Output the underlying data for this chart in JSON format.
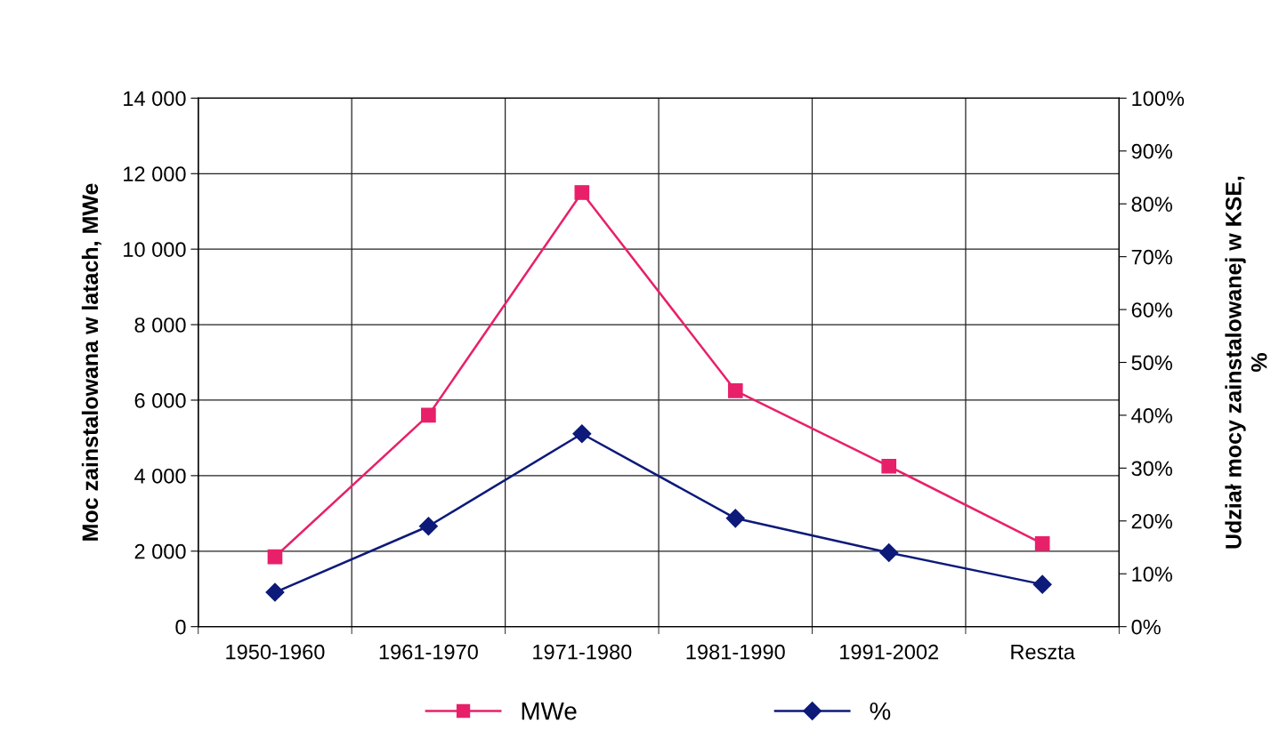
{
  "chart_data": {
    "type": "line",
    "categories": [
      "1950-1960",
      "1961-1970",
      "1971-1980",
      "1981-1990",
      "1991-2002",
      "Reszta"
    ],
    "series": [
      {
        "name": "MWe",
        "color": "#e8206a",
        "values": [
          1850,
          5600,
          11500,
          6250,
          4250,
          2200
        ],
        "marker": "square"
      },
      {
        "name": "%",
        "color": "#0d1a7a",
        "values": [
          6.5,
          19,
          36.5,
          20.5,
          14,
          8
        ],
        "axis": "y2",
        "marker": "diamond"
      }
    ],
    "ylabel": "Moc zainstalowana w latach, MWe",
    "y2label": "Udział mocy zainstalowanej w KSE,\n%",
    "ylim": [
      0,
      14000
    ],
    "yticks": [
      0,
      {
        "value": 2000,
        "label": "2 000"
      },
      {
        "value": 4000,
        "label": "4 000"
      },
      {
        "value": 6000,
        "label": "6 000"
      },
      {
        "value": 8000,
        "label": "8 000"
      },
      {
        "value": 10000,
        "label": "10 000"
      },
      {
        "value": 12000,
        "label": "12 000"
      },
      {
        "value": 14000,
        "label": "14 000"
      }
    ],
    "y2lim": [
      0,
      100
    ],
    "y2ticks": [
      {
        "value": 0,
        "label": "0%"
      },
      {
        "value": 10,
        "label": "10%"
      },
      {
        "value": 20,
        "label": "20%"
      },
      {
        "value": 30,
        "label": "30%"
      },
      {
        "value": 40,
        "label": "40%"
      },
      {
        "value": 50,
        "label": "50%"
      },
      {
        "value": 60,
        "label": "60%"
      },
      {
        "value": 70,
        "label": "70%"
      },
      {
        "value": 80,
        "label": "80%"
      },
      {
        "value": 90,
        "label": "90%"
      },
      {
        "value": 100,
        "label": "100%"
      }
    ],
    "grid": true,
    "legend": "bottom",
    "line_style": "solid"
  }
}
